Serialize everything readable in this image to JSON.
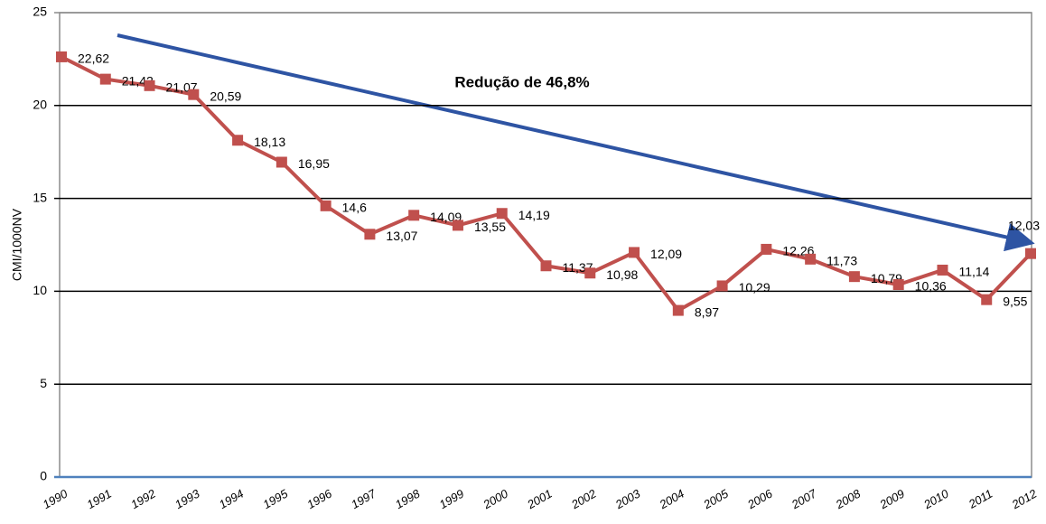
{
  "chart_data": {
    "type": "line",
    "ylabel": "CMI/1000NV",
    "annotation": "Redução de 46,8%",
    "categories": [
      "1990",
      "1991",
      "1992",
      "1993",
      "1994",
      "1995",
      "1996",
      "1997",
      "1998",
      "1999",
      "2000",
      "2001",
      "2002",
      "2003",
      "2004",
      "2005",
      "2006",
      "2007",
      "2008",
      "2009",
      "2010",
      "2011",
      "2012"
    ],
    "series": [
      {
        "color": "#c0504d",
        "values": [
          22.62,
          21.42,
          21.07,
          20.59,
          18.13,
          16.95,
          14.6,
          13.07,
          14.09,
          13.55,
          14.19,
          11.37,
          10.98,
          12.09,
          8.97,
          10.29,
          12.26,
          11.73,
          10.79,
          10.36,
          11.14,
          9.55,
          12.03
        ],
        "value_labels": [
          "22,62",
          "21,42",
          "21,07",
          "20,59",
          "18,13",
          "16,95",
          "14,6",
          "13,07",
          "14,09",
          "13,55",
          "14,19",
          "11,37",
          "10,98",
          "12,09",
          "8,97",
          "10,29",
          "12,26",
          "11,73",
          "10,79",
          "10,36",
          "11,14",
          "9,55",
          "12,03"
        ]
      }
    ],
    "ylim": [
      0,
      25
    ],
    "yticks": [
      0,
      5,
      10,
      15,
      20,
      25
    ],
    "grid": true
  }
}
